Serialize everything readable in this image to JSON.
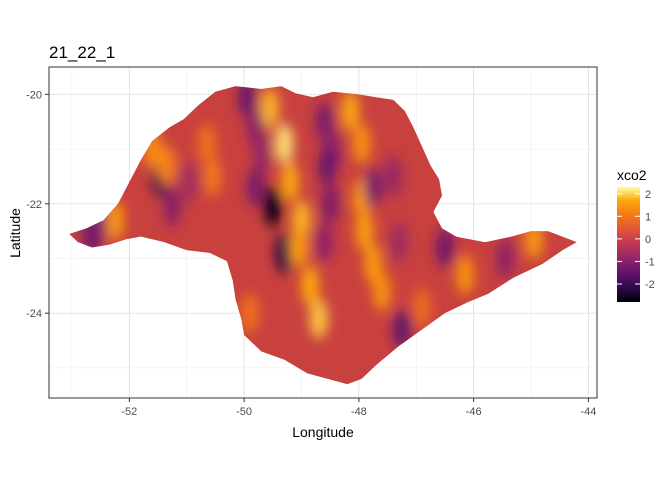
{
  "chart_data": {
    "type": "heatmap",
    "title": "21_22_1",
    "xlabel": "Longitude",
    "ylabel": "Latitude",
    "xlim": [
      -53.4,
      -43.85
    ],
    "ylim": [
      -25.55,
      -19.5
    ],
    "x_ticks": [
      -52,
      -50,
      -48,
      -46,
      -44
    ],
    "x_tick_labels": [
      "-52",
      "-50",
      "-48",
      "-46",
      "-44"
    ],
    "y_ticks": [
      -20,
      -22,
      -24
    ],
    "y_tick_labels": [
      "-20",
      "-22",
      "-24"
    ],
    "grid": true,
    "legend_position": "right",
    "legend": {
      "title": "xco2",
      "range": [
        -2.8,
        2.3
      ],
      "breaks": [
        2,
        1,
        0,
        -1,
        -2
      ],
      "break_labels": [
        "2",
        "1",
        "0",
        "-1",
        "-2"
      ],
      "colormap": "inferno"
    },
    "region_outline_lonlat": [
      [
        -53.05,
        -22.55
      ],
      [
        -52.75,
        -22.45
      ],
      [
        -52.45,
        -22.3
      ],
      [
        -52.2,
        -22.0
      ],
      [
        -52.0,
        -21.6
      ],
      [
        -51.8,
        -21.2
      ],
      [
        -51.6,
        -20.85
      ],
      [
        -51.3,
        -20.6
      ],
      [
        -51.05,
        -20.45
      ],
      [
        -50.8,
        -20.2
      ],
      [
        -50.5,
        -19.95
      ],
      [
        -50.15,
        -19.85
      ],
      [
        -49.7,
        -19.9
      ],
      [
        -49.35,
        -19.85
      ],
      [
        -49.1,
        -19.98
      ],
      [
        -48.8,
        -20.05
      ],
      [
        -48.45,
        -19.95
      ],
      [
        -48.0,
        -20.0
      ],
      [
        -47.7,
        -20.05
      ],
      [
        -47.4,
        -20.1
      ],
      [
        -47.2,
        -20.3
      ],
      [
        -47.05,
        -20.6
      ],
      [
        -46.9,
        -20.95
      ],
      [
        -46.75,
        -21.3
      ],
      [
        -46.6,
        -21.55
      ],
      [
        -46.55,
        -21.85
      ],
      [
        -46.7,
        -22.15
      ],
      [
        -46.55,
        -22.45
      ],
      [
        -46.3,
        -22.6
      ],
      [
        -45.8,
        -22.7
      ],
      [
        -45.35,
        -22.6
      ],
      [
        -45.0,
        -22.5
      ],
      [
        -44.7,
        -22.5
      ],
      [
        -44.45,
        -22.6
      ],
      [
        -44.2,
        -22.7
      ],
      [
        -44.45,
        -22.85
      ],
      [
        -44.8,
        -23.1
      ],
      [
        -45.3,
        -23.35
      ],
      [
        -45.75,
        -23.65
      ],
      [
        -46.1,
        -23.8
      ],
      [
        -46.5,
        -24.0
      ],
      [
        -46.9,
        -24.3
      ],
      [
        -47.3,
        -24.6
      ],
      [
        -47.7,
        -24.95
      ],
      [
        -47.95,
        -25.2
      ],
      [
        -48.2,
        -25.3
      ],
      [
        -48.55,
        -25.2
      ],
      [
        -48.9,
        -25.1
      ],
      [
        -49.3,
        -24.85
      ],
      [
        -49.7,
        -24.7
      ],
      [
        -50.0,
        -24.4
      ],
      [
        -50.05,
        -24.1
      ],
      [
        -50.15,
        -23.75
      ],
      [
        -50.2,
        -23.4
      ],
      [
        -50.3,
        -23.05
      ],
      [
        -50.6,
        -22.9
      ],
      [
        -51.0,
        -22.85
      ],
      [
        -51.4,
        -22.7
      ],
      [
        -51.8,
        -22.6
      ],
      [
        -52.05,
        -22.65
      ],
      [
        -52.35,
        -22.75
      ],
      [
        -52.65,
        -22.8
      ],
      [
        -52.9,
        -22.7
      ]
    ],
    "color_features": [
      {
        "lon": -51.45,
        "lat": -21.5,
        "value": -2.2
      },
      {
        "lon": -51.6,
        "lat": -21.0,
        "value": 1.3
      },
      {
        "lon": -51.35,
        "lat": -21.3,
        "value": 1.2
      },
      {
        "lon": -51.25,
        "lat": -22.05,
        "value": -1.0
      },
      {
        "lon": -50.95,
        "lat": -21.6,
        "value": -0.6
      },
      {
        "lon": -52.25,
        "lat": -22.3,
        "value": 1.5
      },
      {
        "lon": -52.65,
        "lat": -22.55,
        "value": -1.5
      },
      {
        "lon": -52.55,
        "lat": -22.35,
        "value": -1.2
      },
      {
        "lon": -49.95,
        "lat": -20.05,
        "value": -1.4
      },
      {
        "lon": -49.8,
        "lat": -20.6,
        "value": -1.0
      },
      {
        "lon": -49.7,
        "lat": -21.1,
        "value": -0.8
      },
      {
        "lon": -49.8,
        "lat": -21.7,
        "value": -1.2
      },
      {
        "lon": -49.5,
        "lat": -22.05,
        "value": -2.6
      },
      {
        "lon": -49.3,
        "lat": -22.9,
        "value": -2.3
      },
      {
        "lon": -49.55,
        "lat": -20.25,
        "value": 1.8
      },
      {
        "lon": -49.3,
        "lat": -20.9,
        "value": 2.1
      },
      {
        "lon": -49.2,
        "lat": -21.6,
        "value": 1.7
      },
      {
        "lon": -49.0,
        "lat": -22.3,
        "value": 1.8
      },
      {
        "lon": -49.05,
        "lat": -22.8,
        "value": 1.6
      },
      {
        "lon": -48.85,
        "lat": -23.5,
        "value": 1.7
      },
      {
        "lon": -48.7,
        "lat": -24.1,
        "value": 1.9
      },
      {
        "lon": -50.65,
        "lat": -20.9,
        "value": 0.9
      },
      {
        "lon": -50.55,
        "lat": -21.5,
        "value": 1.0
      },
      {
        "lon": -49.9,
        "lat": -24.0,
        "value": 0.9
      },
      {
        "lon": -48.6,
        "lat": -20.5,
        "value": -1.2
      },
      {
        "lon": -48.45,
        "lat": -21.05,
        "value": -0.9
      },
      {
        "lon": -48.55,
        "lat": -21.3,
        "value": -1.4
      },
      {
        "lon": -48.5,
        "lat": -22.0,
        "value": -1.1
      },
      {
        "lon": -48.6,
        "lat": -22.7,
        "value": -0.9
      },
      {
        "lon": -48.15,
        "lat": -20.3,
        "value": 1.7
      },
      {
        "lon": -47.95,
        "lat": -20.9,
        "value": 1.4
      },
      {
        "lon": -47.95,
        "lat": -21.9,
        "value": 1.5
      },
      {
        "lon": -47.9,
        "lat": -22.5,
        "value": 1.6
      },
      {
        "lon": -47.75,
        "lat": -23.1,
        "value": 1.5
      },
      {
        "lon": -47.6,
        "lat": -23.6,
        "value": 1.4
      },
      {
        "lon": -47.75,
        "lat": -21.7,
        "value": -1.2
      },
      {
        "lon": -47.4,
        "lat": -21.5,
        "value": -0.8
      },
      {
        "lon": -47.3,
        "lat": -22.7,
        "value": -0.7
      },
      {
        "lon": -47.25,
        "lat": -24.3,
        "value": -1.5
      },
      {
        "lon": -46.5,
        "lat": -22.8,
        "value": -1.3
      },
      {
        "lon": -46.15,
        "lat": -23.3,
        "value": 1.4
      },
      {
        "lon": -45.45,
        "lat": -23.0,
        "value": -0.9
      },
      {
        "lon": -44.95,
        "lat": -22.65,
        "value": 1.5
      },
      {
        "lon": -46.9,
        "lat": -23.9,
        "value": 0.8
      }
    ]
  }
}
